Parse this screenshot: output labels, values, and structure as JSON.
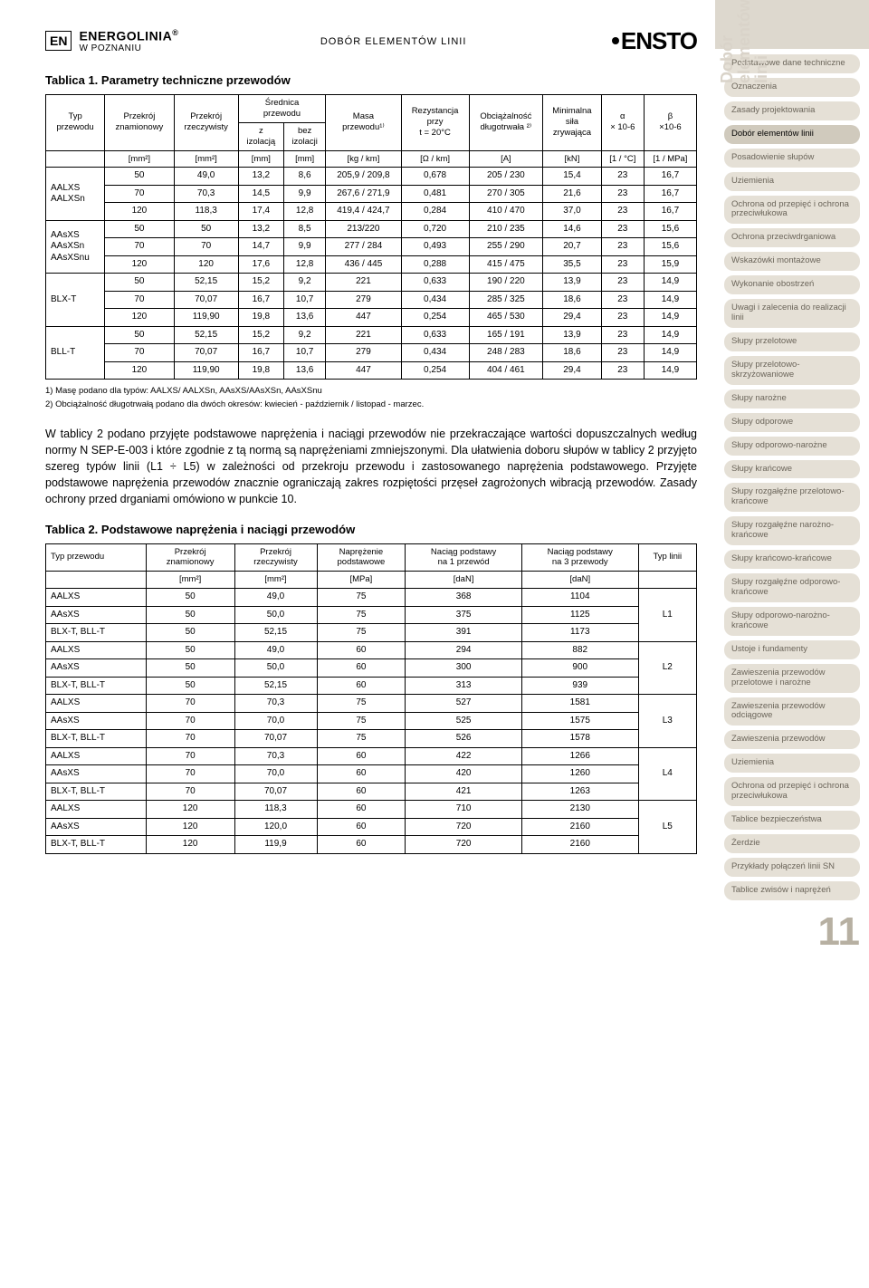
{
  "header": {
    "lang_badge": "EN",
    "brand": "ENERGOLINIA",
    "brand_reg": "®",
    "brand_sub": "W POZNANIU",
    "center": "DOBÓR ELEMENTÓW LINII",
    "logo": "ENSTO"
  },
  "table1": {
    "title": "Tablica 1. Parametry techniczne przewodów",
    "headers": {
      "typ": "Typ\nprzewodu",
      "pz": "Przekrój\nznamionowy",
      "pr": "Przekrój\nrzeczywisty",
      "sr": "Średnica\nprzewodu",
      "masa": "Masa\nprzewodu¹⁾",
      "rez": "Rezystancja\nprzy\nt = 20°C",
      "obc": "Obciążalność\ndługotrwała ²⁾",
      "min": "Minimalna\nsiła\nzrywająca",
      "alpha": "α\n× 10-6",
      "beta": "β\n×10-6",
      "zizo": "z\nizolacją",
      "bezizo": "bez\nizolacji"
    },
    "units": [
      "[mm²]",
      "[mm²]",
      "[mm]",
      "[mm]",
      "[kg / km]",
      "[Ω / km]",
      "[A]",
      "[kN]",
      "[1 / °C]",
      "[1 / MPa]"
    ],
    "groups": [
      {
        "label": "AALXS\nAALXSn",
        "rows": [
          [
            "50",
            "49,0",
            "13,2",
            "8,6",
            "205,9 / 209,8",
            "0,678",
            "205 / 230",
            "15,4",
            "23",
            "16,7"
          ],
          [
            "70",
            "70,3",
            "14,5",
            "9,9",
            "267,6 / 271,9",
            "0,481",
            "270 / 305",
            "21,6",
            "23",
            "16,7"
          ],
          [
            "120",
            "118,3",
            "17,4",
            "12,8",
            "419,4 / 424,7",
            "0,284",
            "410 / 470",
            "37,0",
            "23",
            "16,7"
          ]
        ]
      },
      {
        "label": "AAsXS\nAAsXSn\nAAsXSnu",
        "rows": [
          [
            "50",
            "50",
            "13,2",
            "8,5",
            "213/220",
            "0,720",
            "210 / 235",
            "14,6",
            "23",
            "15,6"
          ],
          [
            "70",
            "70",
            "14,7",
            "9,9",
            "277 / 284",
            "0,493",
            "255 / 290",
            "20,7",
            "23",
            "15,6"
          ],
          [
            "120",
            "120",
            "17,6",
            "12,8",
            "436 / 445",
            "0,288",
            "415 / 475",
            "35,5",
            "23",
            "15,9"
          ]
        ]
      },
      {
        "label": "BLX-T",
        "rows": [
          [
            "50",
            "52,15",
            "15,2",
            "9,2",
            "221",
            "0,633",
            "190 / 220",
            "13,9",
            "23",
            "14,9"
          ],
          [
            "70",
            "70,07",
            "16,7",
            "10,7",
            "279",
            "0,434",
            "285 / 325",
            "18,6",
            "23",
            "14,9"
          ],
          [
            "120",
            "119,90",
            "19,8",
            "13,6",
            "447",
            "0,254",
            "465 / 530",
            "29,4",
            "23",
            "14,9"
          ]
        ]
      },
      {
        "label": "BLL-T",
        "rows": [
          [
            "50",
            "52,15",
            "15,2",
            "9,2",
            "221",
            "0,633",
            "165 / 191",
            "13,9",
            "23",
            "14,9"
          ],
          [
            "70",
            "70,07",
            "16,7",
            "10,7",
            "279",
            "0,434",
            "248 / 283",
            "18,6",
            "23",
            "14,9"
          ],
          [
            "120",
            "119,90",
            "19,8",
            "13,6",
            "447",
            "0,254",
            "404 / 461",
            "29,4",
            "23",
            "14,9"
          ]
        ]
      }
    ],
    "footnotes": [
      "1) Masę podano dla typów: AALXS/ AALXSn, AAsXS/AAsXSn, AAsXSnu",
      "2) Obciążalność długotrwałą podano dla dwóch okresów: kwiecień - październik / listopad - marzec."
    ]
  },
  "para1": "W tablicy 2 podano przyjęte podstawowe naprężenia i naciągi przewodów nie przekraczające wartości dopuszczalnych według normy N SEP-E-003 i które zgodnie z tą normą są naprężeniami zmniejszonymi. Dla ułatwienia doboru słupów w tablicy 2 przyjęto szereg typów linii (L1 ÷ L5) w zależności od przekroju przewodu i zastosowanego naprężenia podstawowego. Przyjęte podstawowe naprężenia przewodów znacznie ograniczają zakres rozpiętości przęseł zagrożonych wibracją przewodów. Zasady ochrony przed drganiami omówiono w punkcie 10.",
  "table2": {
    "title": "Tablica 2. Podstawowe naprężenia i naciągi przewodów",
    "headers": [
      "Typ przewodu",
      "Przekrój\nznamionowy",
      "Przekrój\nrzeczywisty",
      "Naprężenie\npodstawowe",
      "Naciąg podstawy\nna 1 przewód",
      "Naciąg podstawy\nna 3 przewody",
      "Typ linii"
    ],
    "units": [
      "",
      "[mm²]",
      "[mm²]",
      "[MPa]",
      "[daN]",
      "[daN]",
      ""
    ],
    "groups": [
      {
        "typ": "L1",
        "rows": [
          [
            "AALXS",
            "50",
            "49,0",
            "75",
            "368",
            "1104"
          ],
          [
            "AAsXS",
            "50",
            "50,0",
            "75",
            "375",
            "1125"
          ],
          [
            "BLX-T, BLL-T",
            "50",
            "52,15",
            "75",
            "391",
            "1173"
          ]
        ]
      },
      {
        "typ": "L2",
        "rows": [
          [
            "AALXS",
            "50",
            "49,0",
            "60",
            "294",
            "882"
          ],
          [
            "AAsXS",
            "50",
            "50,0",
            "60",
            "300",
            "900"
          ],
          [
            "BLX-T, BLL-T",
            "50",
            "52,15",
            "60",
            "313",
            "939"
          ]
        ]
      },
      {
        "typ": "L3",
        "rows": [
          [
            "AALXS",
            "70",
            "70,3",
            "75",
            "527",
            "1581"
          ],
          [
            "AAsXS",
            "70",
            "70,0",
            "75",
            "525",
            "1575"
          ],
          [
            "BLX-T, BLL-T",
            "70",
            "70,07",
            "75",
            "526",
            "1578"
          ]
        ]
      },
      {
        "typ": "L4",
        "rows": [
          [
            "AALXS",
            "70",
            "70,3",
            "60",
            "422",
            "1266"
          ],
          [
            "AAsXS",
            "70",
            "70,0",
            "60",
            "420",
            "1260"
          ],
          [
            "BLX-T, BLL-T",
            "70",
            "70,07",
            "60",
            "421",
            "1263"
          ]
        ]
      },
      {
        "typ": "L5",
        "rows": [
          [
            "AALXS",
            "120",
            "118,3",
            "60",
            "710",
            "2130"
          ],
          [
            "AAsXS",
            "120",
            "120,0",
            "60",
            "720",
            "2160"
          ],
          [
            "BLX-T, BLL-T",
            "120",
            "119,9",
            "60",
            "720",
            "2160"
          ]
        ]
      }
    ]
  },
  "sidebar": {
    "tab": "Dobór\nelementów\nlinii",
    "items": [
      "Podstawowe dane techniczne",
      "Oznaczenia",
      "Zasady projektowania",
      "Dobór elementów linii",
      "Posadowienie słupów",
      "Uziemienia",
      "Ochrona od przepięć i ochrona przeciwłukowa",
      "Ochrona przeciwdrganiowa",
      "Wskazówki montażowe",
      "Wykonanie obostrzeń",
      "Uwagi i zalecenia do realizacji linii",
      "Słupy przelotowe",
      "Słupy przelotowo-skrzyżowaniowe",
      "Słupy narożne",
      "Słupy odporowe",
      "Słupy odporowo-narożne",
      "Słupy krańcowe",
      "Słupy rozgałęźne przelotowo-krańcowe",
      "Słupy rozgałęźne narożno-krańcowe",
      "Słupy krańcowo-krańcowe",
      "Słupy rozgałęźne odporowo-krańcowe",
      "Słupy odporowo-narożno-krańcowe",
      "Ustoje i fundamenty",
      "Zawieszenia przewodów przelotowe i narożne",
      "Zawieszenia przewodów odciągowe",
      "Zawieszenia przewodów",
      "Uziemienia",
      "Ochrona od przepięć i ochrona przeciwłukowa",
      "Tablice bezpieczeństwa",
      "Żerdzie",
      "Przykłady połączeń linii SN",
      "Tablice zwisów i naprężeń"
    ],
    "active_index": 3,
    "page_num": "11"
  },
  "colors": {
    "pill_bg": "#e5e0d6",
    "pill_active": "#d0cabd",
    "pill_text": "#6b655a",
    "page_num": "#b7b0a2"
  }
}
